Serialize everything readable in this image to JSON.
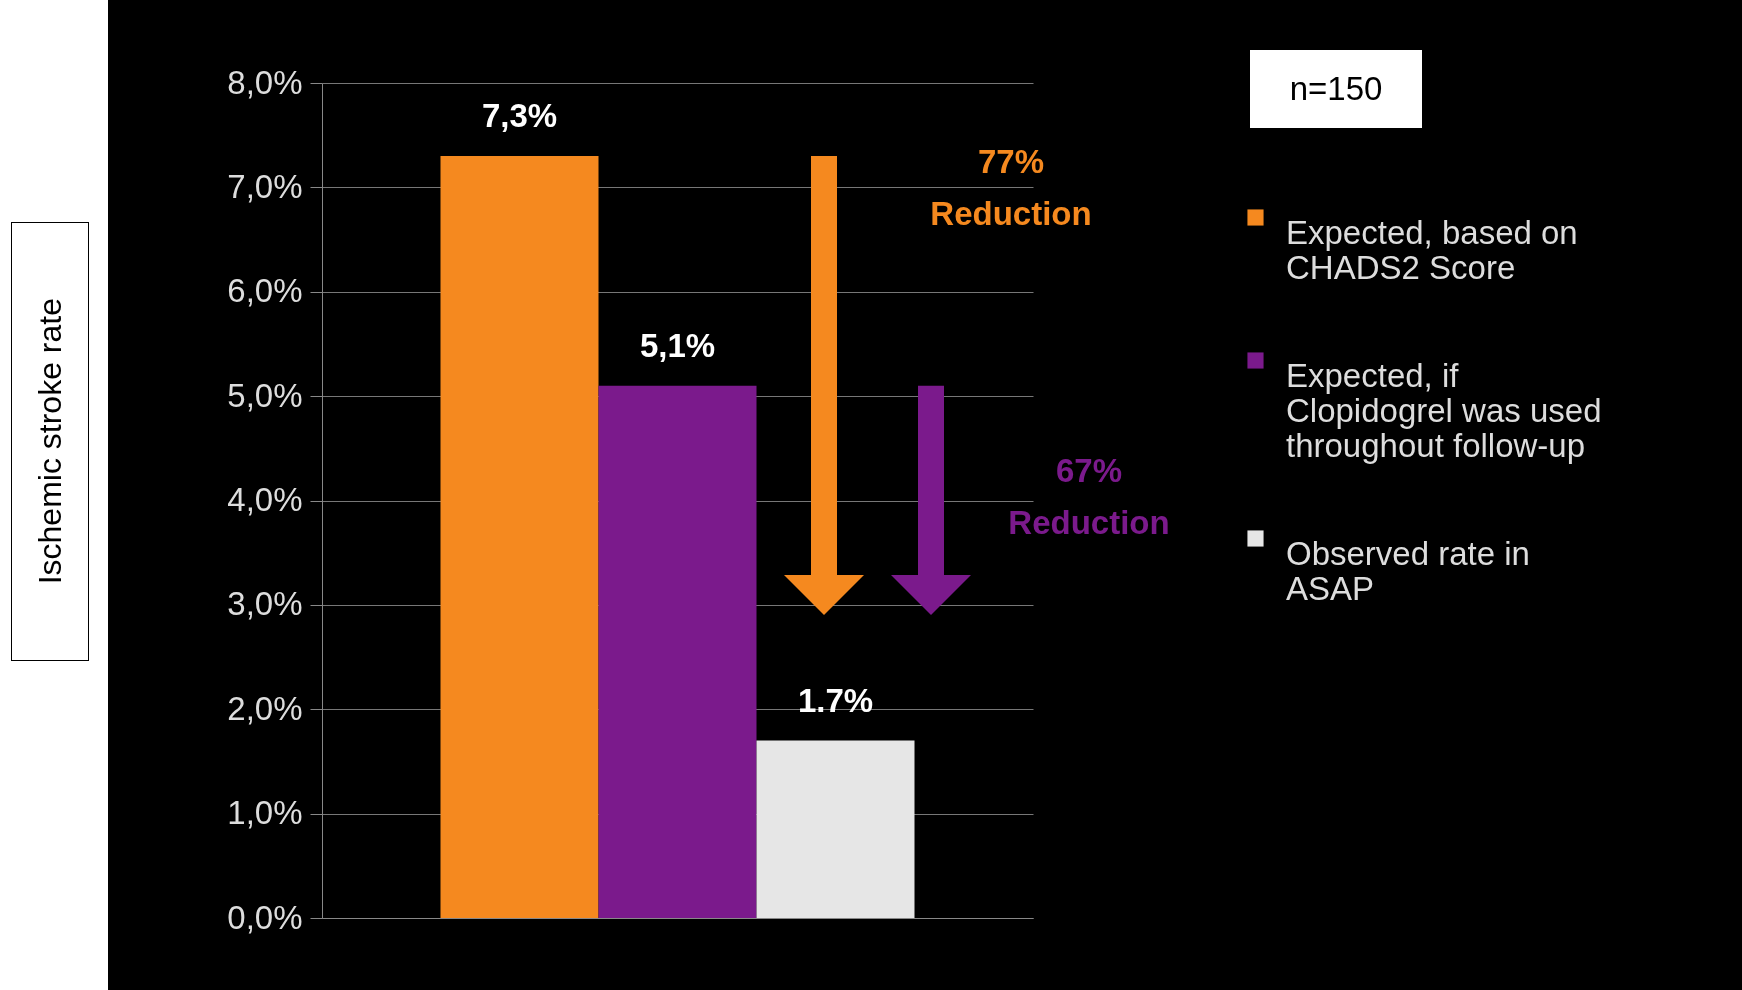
{
  "chart_data": {
    "type": "bar",
    "ylabel": "Ischemic stroke rate",
    "categories": [
      null
    ],
    "series": [
      {
        "name": "Expected, based on CHADS2 Score",
        "color": "#f5891f",
        "values": [
          7.3
        ],
        "value_labels": [
          "7,3%"
        ]
      },
      {
        "name": "Expected, if Clopidogrel was used throughout follow-up",
        "color": "#7b1a8c",
        "values": [
          5.1
        ],
        "value_labels": [
          "5,1%"
        ]
      },
      {
        "name": "Observed rate in ASAP",
        "color": "#e6e6e6",
        "values": [
          1.7
        ],
        "value_labels": [
          "1.7%"
        ]
      }
    ],
    "ylim": [
      0,
      8
    ],
    "yticks": [
      {
        "value": 0,
        "label": "0,0%"
      },
      {
        "value": 1,
        "label": "1,0%"
      },
      {
        "value": 2,
        "label": "2,0%"
      },
      {
        "value": 3,
        "label": "3,0%"
      },
      {
        "value": 4,
        "label": "4,0%"
      },
      {
        "value": 5,
        "label": "5,0%"
      },
      {
        "value": 6,
        "label": "6,0%"
      },
      {
        "value": 7,
        "label": "7,0%"
      },
      {
        "value": 8,
        "label": "8,0%"
      }
    ],
    "grid": "y",
    "legend": "right",
    "annotations": [
      "n=150",
      "77% Reduction",
      "67% Reduction"
    ]
  }
}
